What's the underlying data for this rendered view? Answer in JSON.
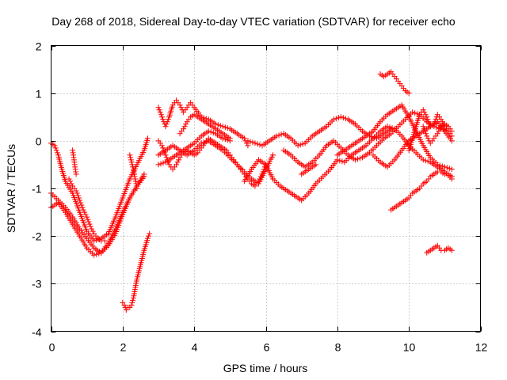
{
  "chart_data": {
    "type": "scatter",
    "title": "Day 268 of 2018, Sidereal Day-to-day VTEC variation (SDTVAR) for receiver echo",
    "xlabel": "GPS time / hours",
    "ylabel": "SDTVAR / TECUs",
    "xlim": [
      0,
      12
    ],
    "ylim": [
      -4,
      2
    ],
    "xticks": [
      "0",
      "2",
      "4",
      "6",
      "8",
      "10",
      "12"
    ],
    "yticks": [
      "-4",
      "-3",
      "-2",
      "-1",
      "0",
      "1",
      "2"
    ],
    "grid": true,
    "marker": "+",
    "series": [
      {
        "name": "SDTVAR",
        "color": "#ff0000",
        "segments": [
          {
            "x": [
              0.0,
              0.1,
              0.2,
              0.3,
              0.4,
              0.6,
              0.8,
              1.0,
              1.2,
              1.4,
              1.6,
              1.8,
              2.0,
              2.2,
              2.4,
              2.6,
              2.7
            ],
            "y": [
              -0.05,
              -0.1,
              -0.3,
              -0.6,
              -0.85,
              -1.1,
              -1.5,
              -1.9,
              -2.1,
              -2.05,
              -1.95,
              -1.6,
              -1.2,
              -0.8,
              -0.5,
              -0.2,
              0.05
            ]
          },
          {
            "x": [
              0.0,
              0.2,
              0.4,
              0.6,
              0.8,
              1.0,
              1.2,
              1.4,
              1.6,
              1.8,
              2.0,
              2.2,
              2.4,
              2.6
            ],
            "y": [
              -1.1,
              -1.25,
              -1.4,
              -1.6,
              -1.85,
              -2.05,
              -2.25,
              -2.35,
              -2.2,
              -1.95,
              -1.55,
              -1.2,
              -0.95,
              -0.7
            ]
          },
          {
            "x": [
              0.0,
              0.2,
              0.4,
              0.6,
              0.8,
              1.0,
              1.2,
              1.4,
              1.6,
              1.8,
              2.0,
              2.2,
              2.4,
              2.6
            ],
            "y": [
              -1.4,
              -1.3,
              -1.5,
              -1.75,
              -2.0,
              -2.25,
              -2.4,
              -2.35,
              -2.15,
              -1.85,
              -1.5,
              -1.2,
              -0.95,
              -0.75
            ]
          },
          {
            "x": [
              0.5,
              0.6,
              0.7,
              0.8,
              0.9,
              1.0,
              1.1,
              1.2,
              1.3,
              1.4,
              1.5
            ],
            "y": [
              -0.8,
              -0.95,
              -1.05,
              -1.25,
              -1.45,
              -1.6,
              -1.8,
              -1.95,
              -2.05,
              -2.1,
              -2.1
            ]
          },
          {
            "x": [
              0.6,
              0.62,
              0.64,
              0.66,
              0.68,
              0.7
            ],
            "y": [
              -0.2,
              -0.3,
              -0.4,
              -0.5,
              -0.6,
              -0.7
            ]
          },
          {
            "x": [
              2.0,
              2.05,
              2.1,
              2.15,
              2.2,
              2.25,
              2.3,
              2.4,
              2.5,
              2.6,
              2.7,
              2.75
            ],
            "y": [
              -3.4,
              -3.45,
              -3.55,
              -3.5,
              -3.5,
              -3.45,
              -3.3,
              -2.9,
              -2.6,
              -2.3,
              -2.05,
              -1.95
            ]
          },
          {
            "x": [
              2.2,
              2.25,
              2.3,
              2.35,
              2.4
            ],
            "y": [
              -0.3,
              -0.45,
              -0.6,
              -0.8,
              -1.0
            ]
          },
          {
            "x": [
              3.0,
              3.1,
              3.2,
              3.3,
              3.4,
              3.5,
              3.6,
              3.7,
              3.8,
              3.9,
              4.0,
              4.2,
              4.4,
              4.6,
              4.8,
              5.0,
              5.2,
              5.4,
              5.5
            ],
            "y": [
              0.7,
              0.5,
              0.3,
              0.5,
              0.75,
              0.85,
              0.75,
              0.6,
              0.7,
              0.8,
              0.7,
              0.5,
              0.45,
              0.35,
              0.3,
              0.25,
              0.15,
              0.05,
              -0.1
            ]
          },
          {
            "x": [
              3.0,
              3.2,
              3.4,
              3.6,
              3.8,
              4.0,
              4.2,
              4.4,
              4.6,
              4.8,
              5.0,
              5.2,
              5.4,
              5.6,
              5.8,
              6.0,
              6.2
            ],
            "y": [
              -0.3,
              -0.2,
              -0.1,
              -0.2,
              -0.3,
              -0.2,
              -0.05,
              0.0,
              -0.1,
              -0.2,
              -0.35,
              -0.5,
              -0.65,
              -0.8,
              -0.9,
              -0.6,
              -0.3
            ]
          },
          {
            "x": [
              3.0,
              3.2,
              3.4,
              3.6,
              3.8,
              4.0,
              4.2,
              4.4,
              4.6,
              4.8,
              5.0
            ],
            "y": [
              -0.5,
              -0.45,
              -0.35,
              -0.25,
              -0.15,
              -0.05,
              0.1,
              0.2,
              0.15,
              0.05,
              0.0
            ]
          },
          {
            "x": [
              3.0,
              3.1,
              3.2,
              3.3,
              3.4,
              3.5,
              3.6,
              3.7,
              3.8,
              3.9,
              4.0,
              4.1,
              4.2,
              4.3,
              4.4,
              4.5,
              4.6,
              4.7,
              4.8,
              4.9,
              5.0,
              5.1,
              5.2,
              5.3,
              5.4,
              5.5,
              5.6,
              5.7,
              5.8,
              5.9,
              6.0
            ],
            "y": [
              0.0,
              -0.1,
              -0.3,
              -0.5,
              -0.6,
              -0.5,
              -0.35,
              -0.25,
              -0.2,
              -0.25,
              -0.3,
              -0.25,
              -0.15,
              -0.05,
              0.05,
              0.0,
              -0.05,
              -0.1,
              -0.15,
              -0.2,
              -0.3,
              -0.4,
              -0.5,
              -0.6,
              -0.7,
              -0.8,
              -0.9,
              -0.95,
              -0.85,
              -0.7,
              -0.5
            ]
          },
          {
            "x": [
              3.6,
              3.7,
              3.8,
              3.9,
              4.0,
              4.1,
              4.2,
              4.3,
              4.4,
              4.5,
              4.6,
              4.7,
              4.8,
              4.9,
              5.0
            ],
            "y": [
              0.15,
              0.25,
              0.4,
              0.5,
              0.55,
              0.5,
              0.45,
              0.4,
              0.35,
              0.3,
              0.25,
              0.2,
              0.15,
              0.1,
              0.05
            ]
          },
          {
            "x": [
              5.4,
              5.6,
              5.8,
              6.0,
              6.2,
              6.4,
              6.6,
              6.8,
              7.0,
              7.2,
              7.4,
              7.6,
              7.8,
              8.0,
              8.2,
              8.4,
              8.6,
              8.8,
              9.0,
              9.2,
              9.4,
              9.6,
              9.8,
              10.0,
              10.2,
              10.4,
              10.6,
              10.8,
              11.0,
              11.2
            ],
            "y": [
              -0.85,
              -0.6,
              -0.4,
              -0.5,
              -0.8,
              -0.95,
              -1.05,
              -1.15,
              -1.25,
              -1.1,
              -0.9,
              -0.75,
              -0.6,
              -0.4,
              -0.45,
              -0.3,
              -0.2,
              -0.1,
              0.05,
              0.2,
              0.3,
              0.25,
              0.1,
              -0.1,
              -0.25,
              -0.4,
              -0.45,
              -0.55,
              -0.65,
              -0.8
            ]
          },
          {
            "x": [
              5.5,
              5.7,
              5.9,
              6.1,
              6.3,
              6.5,
              6.7,
              6.9,
              7.1,
              7.3,
              7.5,
              7.7,
              7.9,
              8.1,
              8.3,
              8.5,
              8.7,
              8.9,
              9.1,
              9.3,
              9.5
            ],
            "y": [
              0.0,
              -0.05,
              -0.1,
              0.0,
              0.1,
              0.15,
              0.05,
              -0.1,
              -0.05,
              0.1,
              0.2,
              0.3,
              0.45,
              0.5,
              0.45,
              0.35,
              0.2,
              0.1,
              0.05,
              0.15,
              0.25
            ]
          },
          {
            "x": [
              6.5,
              6.7,
              6.9,
              7.1,
              7.3,
              7.5,
              7.7,
              7.9,
              8.1,
              8.3,
              8.5,
              8.7,
              8.9,
              9.1,
              9.3,
              9.5,
              9.7,
              9.9,
              10.1,
              10.3,
              10.5,
              10.7,
              10.9,
              11.1
            ],
            "y": [
              -0.2,
              -0.3,
              -0.45,
              -0.55,
              -0.45,
              -0.3,
              -0.1,
              0.0,
              -0.15,
              -0.3,
              -0.4,
              -0.35,
              -0.25,
              -0.1,
              0.05,
              0.15,
              0.3,
              0.45,
              0.6,
              0.55,
              0.4,
              0.3,
              0.25,
              0.2
            ]
          },
          {
            "x": [
              7.0,
              7.1,
              7.2,
              7.3,
              7.4
            ],
            "y": [
              -0.7,
              -0.65,
              -0.6,
              -0.55,
              -0.5
            ]
          },
          {
            "x": [
              8.0,
              8.2,
              8.4,
              8.6,
              8.8,
              9.0,
              9.2,
              9.4,
              9.6,
              9.8,
              10.0,
              10.2,
              10.4,
              10.6,
              10.8,
              11.0,
              11.2
            ],
            "y": [
              -0.3,
              -0.2,
              -0.1,
              0.0,
              0.1,
              0.2,
              0.4,
              0.55,
              0.65,
              0.75,
              0.5,
              0.2,
              -0.1,
              -0.35,
              -0.5,
              -0.55,
              -0.6
            ]
          },
          {
            "x": [
              9.2,
              9.3,
              9.4,
              9.5,
              9.6,
              9.7,
              9.8,
              9.9,
              10.0
            ],
            "y": [
              1.4,
              1.35,
              1.4,
              1.45,
              1.35,
              1.25,
              1.15,
              1.05,
              1.0
            ]
          },
          {
            "x": [
              9.0,
              9.2,
              9.4,
              9.6,
              9.8,
              10.0,
              10.2,
              10.4,
              10.6,
              10.8,
              11.0,
              11.2
            ],
            "y": [
              -0.3,
              -0.45,
              -0.55,
              -0.4,
              -0.2,
              0.0,
              0.1,
              0.2,
              0.3,
              0.4,
              0.2,
              0.0
            ]
          },
          {
            "x": [
              9.5,
              9.6,
              9.7,
              9.8,
              9.9,
              10.0,
              10.1,
              10.2,
              10.3,
              10.4,
              10.5,
              10.6,
              10.7,
              10.8,
              10.9,
              11.0,
              11.1,
              11.2
            ],
            "y": [
              -1.45,
              -1.4,
              -1.35,
              -1.3,
              -1.25,
              -1.2,
              -1.1,
              -1.05,
              -1.0,
              -0.9,
              -0.85,
              -0.75,
              -0.7,
              -0.65,
              -0.65,
              -0.7,
              -0.7,
              -0.75
            ]
          },
          {
            "x": [
              10.0,
              10.1,
              10.2,
              10.3,
              10.4,
              10.5,
              10.6,
              10.7,
              10.8,
              10.9,
              11.0,
              11.1,
              11.2
            ],
            "y": [
              -0.2,
              0.05,
              0.3,
              0.55,
              0.65,
              0.5,
              0.3,
              0.35,
              0.55,
              0.45,
              0.3,
              0.2,
              0.1
            ]
          },
          {
            "x": [
              10.5,
              10.6,
              10.7,
              10.8,
              10.9,
              11.0,
              11.1,
              11.2
            ],
            "y": [
              -2.35,
              -2.3,
              -2.25,
              -2.2,
              -2.3,
              -2.3,
              -2.25,
              -2.3
            ]
          },
          {
            "x": [
              10.4,
              10.5,
              10.6,
              10.7,
              10.8,
              10.9,
              11.0,
              11.1,
              11.2
            ],
            "y": [
              0.3,
              0.1,
              -0.05,
              0.05,
              0.15,
              0.3,
              0.35,
              0.3,
              0.2
            ]
          }
        ]
      }
    ]
  }
}
